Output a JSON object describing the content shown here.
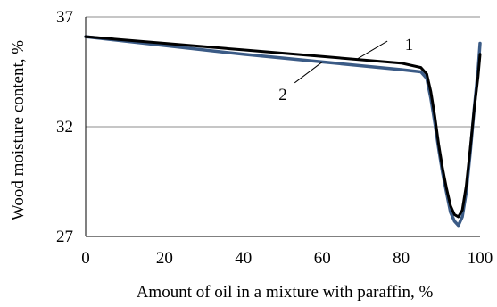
{
  "chart_data": {
    "type": "line",
    "xlabel": "Amount of oil in a mixture with paraffin, %",
    "ylabel": "Wood moisture content, %",
    "xlim": [
      0,
      100
    ],
    "ylim": [
      27,
      37
    ],
    "xticks": [
      "0",
      "20",
      "40",
      "60",
      "80",
      "100"
    ],
    "yticks": [
      "27",
      "32",
      "37"
    ],
    "grid": "horizontal",
    "series": [
      {
        "name": "1",
        "color": "#000000",
        "x": [
          0,
          20,
          40,
          60,
          80,
          85,
          86.5,
          87.5,
          88.5,
          89.5,
          90.5,
          91.5,
          92.5,
          93.5,
          94.5,
          95.5,
          96.5,
          97.5,
          98.5,
          99.5,
          100
        ],
        "y": [
          36.1,
          35.8,
          35.5,
          35.2,
          34.9,
          34.7,
          34.4,
          33.6,
          32.5,
          31.2,
          30.1,
          29.2,
          28.4,
          28.0,
          27.9,
          28.2,
          29.3,
          31.0,
          32.8,
          34.3,
          35.3
        ]
      },
      {
        "name": "2",
        "color": "#3b5b86",
        "x": [
          0,
          20,
          40,
          60,
          80,
          85,
          86.5,
          87.5,
          88.5,
          89.5,
          90.5,
          91.5,
          92.5,
          93.5,
          94.5,
          95.5,
          96.5,
          97.5,
          98.5,
          99.5,
          100
        ],
        "y": [
          36.1,
          35.7,
          35.3,
          34.95,
          34.6,
          34.5,
          34.2,
          33.3,
          32.2,
          31.0,
          29.9,
          29.0,
          28.1,
          27.7,
          27.5,
          27.9,
          29.0,
          30.8,
          32.8,
          34.6,
          35.8
        ]
      }
    ],
    "annotations": [
      "1",
      "2"
    ]
  }
}
